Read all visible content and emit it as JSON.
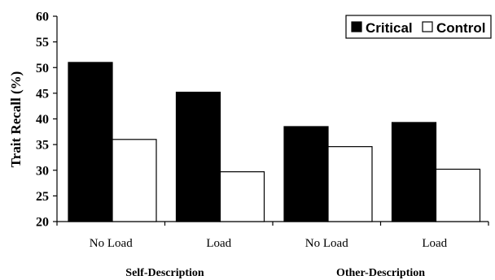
{
  "chart_data": {
    "type": "bar",
    "categories": [
      "No Load",
      "Load",
      "No Load",
      "Load"
    ],
    "groups": [
      {
        "label": "Self-Description",
        "categories": [
          "No Load",
          "Load"
        ]
      },
      {
        "label": "Other-Description",
        "categories": [
          "No Load",
          "Load"
        ]
      }
    ],
    "series": [
      {
        "name": "Critical",
        "color": "#000000",
        "values": [
          51.0,
          45.2,
          38.5,
          39.3
        ]
      },
      {
        "name": "Control",
        "color": "#ffffff",
        "values": [
          36.0,
          29.7,
          34.6,
          30.2
        ]
      }
    ],
    "ylabel": "Trait Recall (%)",
    "ylim": [
      20,
      60
    ],
    "yticks": [
      20,
      25,
      30,
      35,
      40,
      45,
      50,
      55,
      60
    ],
    "legend_position": "top-right",
    "grid": false
  }
}
